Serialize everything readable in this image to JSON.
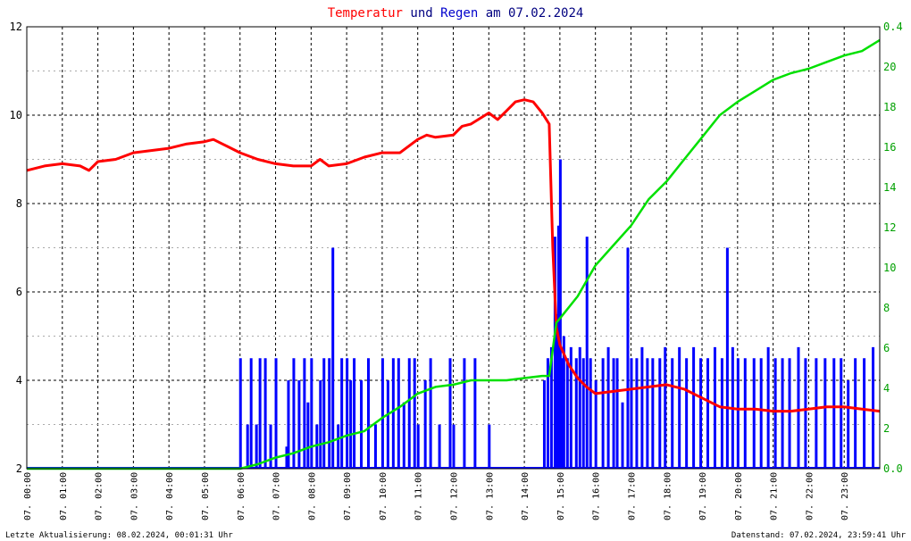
{
  "title": {
    "part1": "Temperatur",
    "part2": " und ",
    "part3": "Regen",
    "part4": " am 07.02.2024"
  },
  "colors": {
    "temperature": "#ff0000",
    "rain_bars": "#0000ff",
    "rain_cumulative": "#00e000",
    "title_dark": "#000080",
    "right_axis": "#00a000"
  },
  "footer": {
    "left": "Letzte Aktualisierung: 08.02.2024, 00:01:31 Uhr",
    "right": "Datenstand: 07.02.2024, 23:59:41 Uhr"
  },
  "chart_data": {
    "type": "line",
    "grid": true,
    "x_tick_labels": [
      "07. 00:00",
      "07. 01:00",
      "07. 02:00",
      "07. 03:00",
      "07. 04:00",
      "07. 05:00",
      "07. 06:00",
      "07. 07:00",
      "07. 08:00",
      "07. 09:00",
      "07. 10:00",
      "07. 11:00",
      "07. 12:00",
      "07. 13:00",
      "07. 14:00",
      "07. 15:00",
      "07. 16:00",
      "07. 17:00",
      "07. 18:00",
      "07. 19:00",
      "07. 20:00",
      "07. 21:00",
      "07. 22:00",
      "07. 23:00"
    ],
    "x_range_hours": [
      0,
      24
    ],
    "left_axis": {
      "ylim": [
        2,
        12
      ],
      "ticks": [
        "2",
        "4",
        "6",
        "8",
        "10",
        "12"
      ]
    },
    "right_axis_upper": {
      "ticks": [
        "0.0",
        "2",
        "4",
        "6",
        "8",
        "10",
        "12",
        "14",
        "16",
        "18",
        "20",
        "0.4"
      ]
    },
    "series": [
      {
        "name": "Temperatur",
        "axis": "left",
        "x_hours": [
          0,
          0.5,
          1,
          1.5,
          1.75,
          2,
          2.5,
          3,
          3.5,
          4,
          4.5,
          5,
          5.25,
          5.5,
          6,
          6.5,
          7,
          7.5,
          8,
          8.25,
          8.5,
          9,
          9.5,
          10,
          10.5,
          11,
          11.25,
          11.5,
          12,
          12.25,
          12.5,
          13,
          13.25,
          13.5,
          13.75,
          14,
          14.25,
          14.5,
          14.7,
          14.8,
          14.9,
          15,
          15.25,
          15.5,
          15.75,
          16,
          16.5,
          17,
          17.5,
          18,
          18.5,
          19,
          19.5,
          20,
          20.5,
          21,
          21.5,
          22,
          22.5,
          23,
          23.5,
          24
        ],
        "values": [
          8.75,
          8.85,
          8.9,
          8.85,
          8.75,
          8.95,
          9.0,
          9.15,
          9.2,
          9.25,
          9.35,
          9.4,
          9.45,
          9.35,
          9.15,
          9.0,
          8.9,
          8.85,
          8.85,
          9.0,
          8.85,
          8.9,
          9.05,
          9.15,
          9.15,
          9.45,
          9.55,
          9.5,
          9.55,
          9.75,
          9.8,
          10.05,
          9.9,
          10.1,
          10.3,
          10.35,
          10.3,
          10.05,
          9.8,
          7.0,
          5.2,
          4.8,
          4.35,
          4.05,
          3.85,
          3.7,
          3.75,
          3.8,
          3.85,
          3.9,
          3.8,
          3.6,
          3.4,
          3.35,
          3.35,
          3.3,
          3.3,
          3.35,
          3.4,
          3.4,
          3.35,
          3.3
        ]
      },
      {
        "name": "Regen",
        "axis": "left",
        "x_hours": [
          0,
          6,
          6.5,
          7,
          7.5,
          8,
          8.5,
          9,
          9.5,
          10,
          10.5,
          11,
          11.5,
          12,
          12.5,
          13,
          13.5,
          14,
          14.5,
          14.7,
          14.9,
          15,
          15.5,
          16,
          16.5,
          17,
          17.5,
          18,
          18.5,
          19,
          19.5,
          20,
          20.5,
          21,
          21.5,
          22,
          22.5,
          23,
          23.5,
          24
        ],
        "values": [
          2.0,
          2.0,
          2.1,
          2.25,
          2.35,
          2.5,
          2.6,
          2.75,
          2.85,
          3.15,
          3.4,
          3.7,
          3.85,
          3.9,
          4.0,
          4.0,
          4.0,
          4.05,
          4.1,
          4.1,
          5.3,
          5.4,
          5.9,
          6.6,
          7.05,
          7.5,
          8.1,
          8.5,
          9.0,
          9.5,
          10.0,
          10.3,
          10.55,
          10.8,
          10.95,
          11.05,
          11.2,
          11.35,
          11.45,
          11.7
        ]
      }
    ],
    "rain_bars": {
      "axis": "left",
      "baseline": 2,
      "bins": [
        [
          6.0,
          4.5
        ],
        [
          6.2,
          3.0
        ],
        [
          6.3,
          4.5
        ],
        [
          6.45,
          3.0
        ],
        [
          6.55,
          4.5
        ],
        [
          6.7,
          4.5
        ],
        [
          6.85,
          3.0
        ],
        [
          7.0,
          4.5
        ],
        [
          7.3,
          2.5
        ],
        [
          7.35,
          4.0
        ],
        [
          7.5,
          4.5
        ],
        [
          7.65,
          4.0
        ],
        [
          7.8,
          4.5
        ],
        [
          7.9,
          3.5
        ],
        [
          8.0,
          4.5
        ],
        [
          8.15,
          3.0
        ],
        [
          8.25,
          4.0
        ],
        [
          8.35,
          4.5
        ],
        [
          8.5,
          4.5
        ],
        [
          8.6,
          7.0
        ],
        [
          8.75,
          3.0
        ],
        [
          8.85,
          4.5
        ],
        [
          9.0,
          4.5
        ],
        [
          9.1,
          4.0
        ],
        [
          9.2,
          4.5
        ],
        [
          9.4,
          4.0
        ],
        [
          9.6,
          4.5
        ],
        [
          9.8,
          3.0
        ],
        [
          10.0,
          4.5
        ],
        [
          10.15,
          4.0
        ],
        [
          10.3,
          4.5
        ],
        [
          10.45,
          4.5
        ],
        [
          10.6,
          3.5
        ],
        [
          10.75,
          4.5
        ],
        [
          10.9,
          4.5
        ],
        [
          11.0,
          3.0
        ],
        [
          11.2,
          4.0
        ],
        [
          11.35,
          4.5
        ],
        [
          11.6,
          3.0
        ],
        [
          11.9,
          4.5
        ],
        [
          12.0,
          3.0
        ],
        [
          12.3,
          4.5
        ],
        [
          12.6,
          4.5
        ],
        [
          13.0,
          3.0
        ],
        [
          14.55,
          4.0
        ],
        [
          14.65,
          4.5
        ],
        [
          14.75,
          4.75
        ],
        [
          14.85,
          7.25
        ],
        [
          14.9,
          5.5
        ],
        [
          14.95,
          7.5
        ],
        [
          15.0,
          9.0
        ],
        [
          15.05,
          4.5
        ],
        [
          15.1,
          5.0
        ],
        [
          15.2,
          4.5
        ],
        [
          15.3,
          4.75
        ],
        [
          15.45,
          4.5
        ],
        [
          15.55,
          4.75
        ],
        [
          15.65,
          4.5
        ],
        [
          15.75,
          7.25
        ],
        [
          15.85,
          4.5
        ],
        [
          16.0,
          4.0
        ],
        [
          16.2,
          4.5
        ],
        [
          16.35,
          4.75
        ],
        [
          16.5,
          4.5
        ],
        [
          16.6,
          4.5
        ],
        [
          16.75,
          3.5
        ],
        [
          16.9,
          7.0
        ],
        [
          17.0,
          4.5
        ],
        [
          17.15,
          4.5
        ],
        [
          17.3,
          4.75
        ],
        [
          17.45,
          4.5
        ],
        [
          17.6,
          4.5
        ],
        [
          17.8,
          4.5
        ],
        [
          17.95,
          4.75
        ],
        [
          18.15,
          4.5
        ],
        [
          18.35,
          4.75
        ],
        [
          18.55,
          4.5
        ],
        [
          18.75,
          4.75
        ],
        [
          18.95,
          4.5
        ],
        [
          19.15,
          4.5
        ],
        [
          19.35,
          4.75
        ],
        [
          19.55,
          4.5
        ],
        [
          19.7,
          7.0
        ],
        [
          19.85,
          4.75
        ],
        [
          20.0,
          4.5
        ],
        [
          20.2,
          4.5
        ],
        [
          20.45,
          4.5
        ],
        [
          20.65,
          4.5
        ],
        [
          20.85,
          4.75
        ],
        [
          21.05,
          4.5
        ],
        [
          21.25,
          4.5
        ],
        [
          21.45,
          4.5
        ],
        [
          21.7,
          4.75
        ],
        [
          21.9,
          4.5
        ],
        [
          22.2,
          4.5
        ],
        [
          22.45,
          4.5
        ],
        [
          22.7,
          4.5
        ],
        [
          22.9,
          4.5
        ],
        [
          23.1,
          4.0
        ],
        [
          23.3,
          4.5
        ],
        [
          23.55,
          4.5
        ],
        [
          23.8,
          4.75
        ]
      ]
    }
  }
}
